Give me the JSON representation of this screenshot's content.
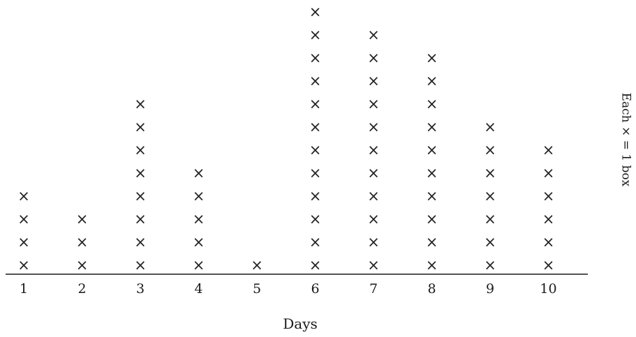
{
  "chart_data": {
    "type": "dot_plot",
    "categories": [
      "1",
      "2",
      "3",
      "4",
      "5",
      "6",
      "7",
      "8",
      "9",
      "10"
    ],
    "values": [
      4,
      3,
      8,
      5,
      1,
      12,
      11,
      10,
      7,
      6
    ],
    "xlabel": "Days",
    "key": "Each × = 1 box",
    "mark_symbol": "×"
  }
}
